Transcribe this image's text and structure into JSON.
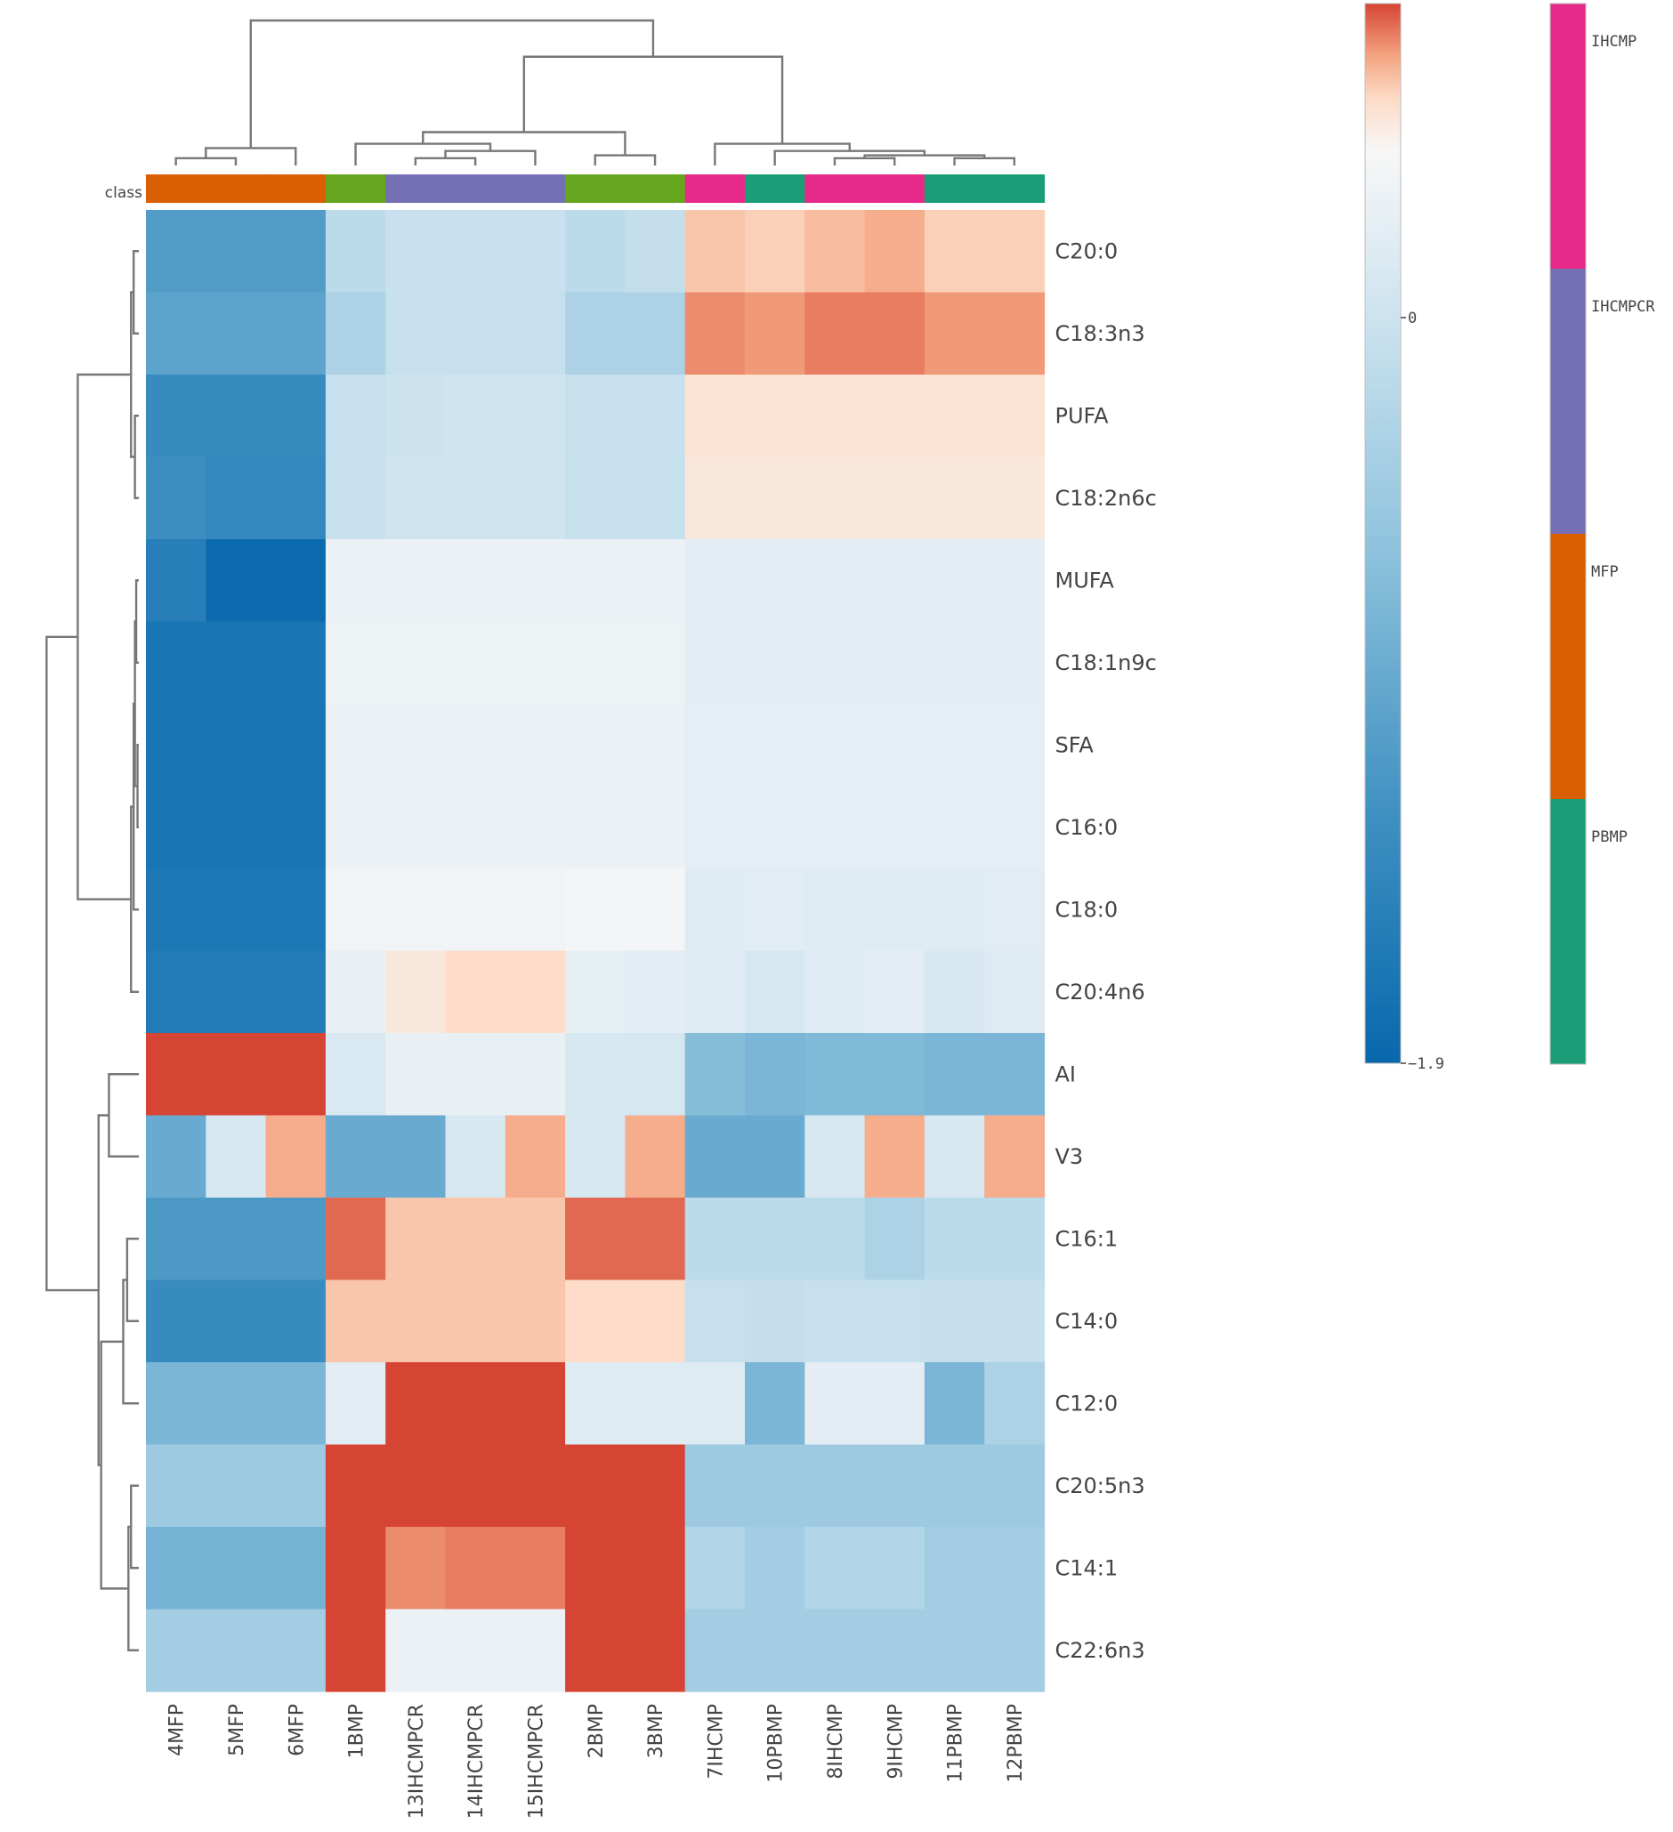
{
  "chart_data": {
    "type": "heatmap",
    "class_label": "class",
    "rows": [
      "C20:0",
      "C18:3n3",
      "PUFA",
      "C18:2n6c",
      "MUFA",
      "C18:1n9c",
      "SFA",
      "C16:0",
      "C18:0",
      "C20:4n6",
      "AI",
      "V3",
      "C16:1",
      "C14:0",
      "C12:0",
      "C20:5n3",
      "C14:1",
      "C22:6n3"
    ],
    "columns": [
      "4MFP",
      "5MFP",
      "6MFP",
      "1BMP",
      "13IHCMPCR",
      "14IHCMPCR",
      "15IHCMPCR",
      "2BMP",
      "3BMP",
      "7IHCMP",
      "10PBMP",
      "8IHCMP",
      "9IHCMP",
      "11PBMP",
      "12PBMP"
    ],
    "column_classes": [
      "MFP",
      "MFP",
      "MFP",
      "BMP",
      "IHCMPCR",
      "IHCMPCR",
      "IHCMPCR",
      "BMP",
      "BMP",
      "IHCMP",
      "PBMP",
      "IHCMP",
      "IHCMP",
      "PBMP",
      "PBMP"
    ],
    "values": [
      [
        -1.1,
        -1.1,
        -1.1,
        -0.15,
        -0.03,
        -0.03,
        -0.03,
        -0.15,
        -0.08,
        0.6,
        0.58,
        0.62,
        0.65,
        0.58,
        0.58
      ],
      [
        -1.0,
        -1.0,
        -1.0,
        -0.3,
        -0.05,
        -0.05,
        -0.05,
        -0.3,
        -0.3,
        0.7,
        0.68,
        0.72,
        0.72,
        0.68,
        0.68
      ],
      [
        -1.35,
        -1.35,
        -1.35,
        -0.05,
        0.0,
        0.02,
        0.02,
        -0.05,
        -0.05,
        0.52,
        0.52,
        0.52,
        0.52,
        0.52,
        0.52
      ],
      [
        -1.3,
        -1.4,
        -1.4,
        -0.05,
        0.03,
        0.03,
        0.03,
        -0.05,
        -0.05,
        0.5,
        0.5,
        0.5,
        0.5,
        0.5,
        0.5
      ],
      [
        -1.55,
        -1.85,
        -1.85,
        0.3,
        0.3,
        0.3,
        0.3,
        0.3,
        0.3,
        0.22,
        0.22,
        0.22,
        0.22,
        0.22,
        0.22
      ],
      [
        -1.7,
        -1.7,
        -1.7,
        0.32,
        0.32,
        0.32,
        0.32,
        0.32,
        0.32,
        0.22,
        0.22,
        0.22,
        0.22,
        0.22,
        0.22
      ],
      [
        -1.7,
        -1.7,
        -1.7,
        0.3,
        0.3,
        0.3,
        0.3,
        0.3,
        0.3,
        0.24,
        0.24,
        0.24,
        0.24,
        0.24,
        0.24
      ],
      [
        -1.7,
        -1.7,
        -1.7,
        0.3,
        0.3,
        0.3,
        0.3,
        0.3,
        0.3,
        0.24,
        0.24,
        0.24,
        0.24,
        0.24,
        0.24
      ],
      [
        -1.65,
        -1.65,
        -1.65,
        0.35,
        0.35,
        0.35,
        0.35,
        0.38,
        0.38,
        0.18,
        0.2,
        0.18,
        0.18,
        0.18,
        0.2
      ],
      [
        -1.6,
        -1.6,
        -1.6,
        0.28,
        0.5,
        0.55,
        0.55,
        0.25,
        0.22,
        0.18,
        0.08,
        0.18,
        0.22,
        0.1,
        0.18
      ],
      [
        0.9,
        1.15,
        1.15,
        0.12,
        0.28,
        0.28,
        0.28,
        0.1,
        0.08,
        -0.65,
        -0.75,
        -0.7,
        -0.7,
        -0.75,
        -0.75
      ],
      [
        -0.9,
        0.1,
        0.65,
        -0.9,
        -0.9,
        0.1,
        0.65,
        0.1,
        0.65,
        -0.9,
        -0.9,
        0.1,
        0.65,
        0.1,
        0.65
      ],
      [
        -1.15,
        -1.15,
        -1.15,
        0.75,
        0.6,
        0.6,
        0.6,
        0.75,
        0.75,
        -0.15,
        -0.15,
        -0.15,
        -0.3,
        -0.15,
        -0.15
      ],
      [
        -1.35,
        -1.35,
        -1.35,
        0.6,
        0.6,
        0.6,
        0.6,
        0.55,
        0.55,
        -0.05,
        -0.08,
        -0.05,
        -0.05,
        -0.06,
        -0.06
      ],
      [
        -0.75,
        -0.75,
        -0.75,
        0.2,
        0.9,
        1.1,
        1.1,
        0.18,
        0.18,
        0.18,
        -0.75,
        0.22,
        0.22,
        -0.75,
        -0.3
      ],
      [
        -0.45,
        -0.45,
        -0.45,
        0.85,
        0.85,
        0.85,
        0.85,
        0.85,
        0.85,
        -0.45,
        -0.45,
        -0.45,
        -0.45,
        -0.45,
        -0.45
      ],
      [
        -0.8,
        -0.8,
        -0.8,
        0.9,
        0.7,
        0.72,
        0.72,
        0.9,
        0.9,
        -0.25,
        -0.4,
        -0.25,
        -0.25,
        -0.4,
        -0.4
      ],
      [
        -0.4,
        -0.4,
        -0.4,
        1.3,
        0.3,
        0.3,
        0.3,
        1.3,
        1.3,
        -0.4,
        -0.4,
        -0.4,
        -0.4,
        -0.4,
        -0.4
      ]
    ],
    "colorbar": {
      "min": -1.9,
      "max": 0.8,
      "tick_labels": [
        "0",
        "−1.9"
      ],
      "tick_values": [
        0,
        -1.9
      ]
    },
    "class_legend": [
      {
        "name": "IHCMP",
        "color": "#E7298A"
      },
      {
        "name": "IHCMPCR",
        "color": "#7570B3"
      },
      {
        "name": "MFP",
        "color": "#D95F02"
      },
      {
        "name": "PBMP",
        "color": "#1B9E77"
      }
    ],
    "class_colors": {
      "MFP": "#D95F02",
      "BMP": "#66A61E",
      "IHCMPCR": "#7570B3",
      "IHCMP": "#E7298A",
      "PBMP": "#1B9E77"
    },
    "column_dendrogram": [
      [
        "4MFP",
        "5MFP",
        0.05
      ],
      [
        "_",
        "6MFP",
        0.12
      ],
      [
        "13IHCMPCR",
        "14IHCMPCR",
        0.05
      ],
      [
        "_",
        "15IHCMPCR",
        0.1
      ],
      [
        "1BMP",
        "_",
        0.15
      ],
      [
        "2BMP",
        "3BMP",
        0.07
      ],
      [
        "_",
        "_",
        0.23
      ],
      [
        "8IHCMP",
        "9IHCMP",
        0.05
      ],
      [
        "11PBMP",
        "12PBMP",
        0.05
      ],
      [
        "_",
        "_",
        0.07
      ],
      [
        "10PBMP",
        "_",
        0.1
      ],
      [
        "7IHCMP",
        "_",
        0.15
      ],
      [
        "_",
        "_",
        0.75
      ],
      [
        "_",
        "_",
        1.0
      ]
    ],
    "row_dendrogram": [
      [
        "C20:0",
        "C18:3n3",
        0.04
      ],
      [
        "PUFA",
        "C18:2n6c",
        0.03
      ],
      [
        "_",
        "_",
        0.06
      ],
      [
        "MUFA",
        "C18:1n9c",
        0.02
      ],
      [
        "SFA",
        "C16:0",
        0.01
      ],
      [
        "_",
        "_",
        0.03
      ],
      [
        "C18:0",
        "_",
        0.04
      ],
      [
        "_",
        "C20:4n6",
        0.06
      ],
      [
        "_",
        "_",
        0.47
      ],
      [
        "AI",
        "V3",
        0.23
      ],
      [
        "C16:1",
        "C14:0",
        0.09
      ],
      [
        "_",
        "C12:0",
        0.12
      ],
      [
        "C20:5n3",
        "C14:1",
        0.06
      ],
      [
        "_",
        "C22:6n3",
        0.08
      ],
      [
        "_",
        "_",
        0.29
      ],
      [
        "_",
        "_",
        0.31
      ],
      [
        "_",
        "_",
        0.71
      ]
    ]
  }
}
